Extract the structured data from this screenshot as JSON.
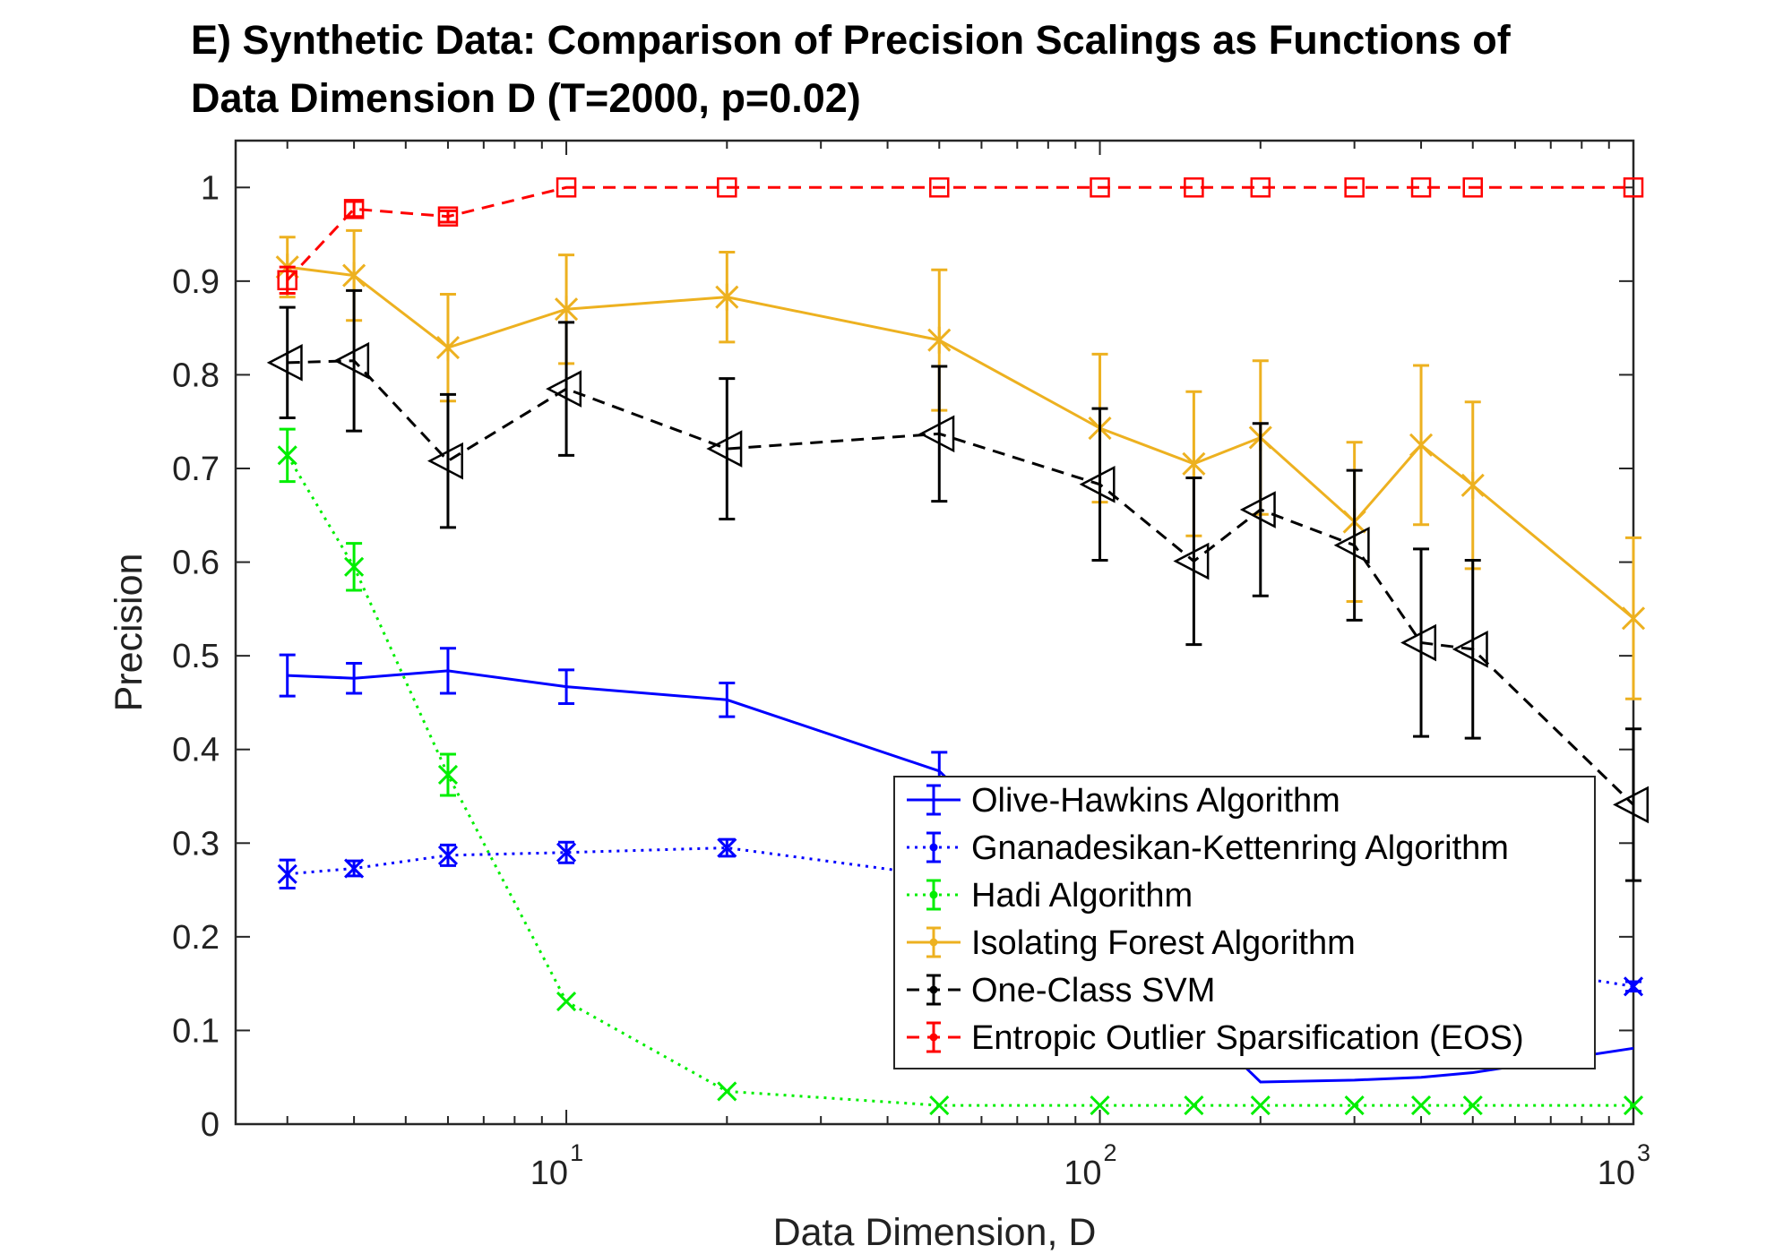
{
  "chart_data": {
    "type": "line",
    "title_lines": [
      "E) Synthetic Data: Comparison of Precision Scalings as Functions of",
      "Data Dimension D (T=2000, p=0.02)"
    ],
    "xlabel": "Data Dimension, D",
    "ylabel": "Precision",
    "xscale": "log",
    "xlim": [
      2.4,
      1000
    ],
    "ylim": [
      0,
      1.05
    ],
    "xticks": [
      10,
      100,
      1000
    ],
    "xtick_labels": [
      {
        "base": "10",
        "exp": "1"
      },
      {
        "base": "10",
        "exp": "2"
      },
      {
        "base": "10",
        "exp": "3"
      }
    ],
    "yticks": [
      0,
      0.1,
      0.2,
      0.3,
      0.4,
      0.5,
      0.6,
      0.7,
      0.8,
      0.9,
      1
    ],
    "ytick_labels": [
      "0",
      "0.1",
      "0.2",
      "0.3",
      "0.4",
      "0.5",
      "0.6",
      "0.7",
      "0.8",
      "0.9",
      "1"
    ],
    "grid": false,
    "legend_position": "lower-right",
    "x": [
      3,
      4,
      6,
      10,
      20,
      50,
      100,
      150,
      200,
      300,
      400,
      500,
      1000
    ],
    "series": [
      {
        "name": "Olive-Hawkins Algorithm",
        "color": "#0000ff",
        "line": "solid",
        "marker": "none",
        "x": [
          3,
          4,
          6,
          10,
          20,
          50,
          200,
          300,
          400,
          500,
          1000
        ],
        "values": [
          0.479,
          0.476,
          0.484,
          0.467,
          0.453,
          0.377,
          0.045,
          0.047,
          0.05,
          0.055,
          0.081
        ],
        "err": [
          0.022,
          0.016,
          0.024,
          0.018,
          0.018,
          0.02,
          0,
          0,
          0,
          0,
          0
        ]
      },
      {
        "name": "Gnanadesikan-Kettenring Algorithm",
        "color": "#0000ff",
        "line": "dotted",
        "marker": "x",
        "x": [
          3,
          4,
          6,
          10,
          20,
          50,
          1000
        ],
        "values": [
          0.267,
          0.273,
          0.287,
          0.29,
          0.295,
          0.265,
          0.147
        ],
        "err": [
          0.015,
          0.008,
          0.011,
          0.011,
          0.009,
          0,
          0.005
        ]
      },
      {
        "name": "Hadi Algorithm",
        "color": "#00ee00",
        "line": "dotted",
        "marker": "x",
        "x": [
          3,
          4,
          6,
          10,
          20,
          50,
          100,
          150,
          200,
          300,
          400,
          500,
          1000
        ],
        "values": [
          0.714,
          0.595,
          0.373,
          0.131,
          0.035,
          0.02,
          0.02,
          0.02,
          0.02,
          0.02,
          0.02,
          0.02,
          0.02
        ],
        "err": [
          0.028,
          0.025,
          0.022,
          0,
          0,
          0,
          0,
          0,
          0,
          0,
          0,
          0,
          0
        ]
      },
      {
        "name": "Isolating Forest Algorithm",
        "color": "#edb120",
        "line": "solid",
        "marker": "star",
        "x": [
          3,
          4,
          6,
          10,
          20,
          50,
          100,
          150,
          200,
          300,
          400,
          500,
          1000
        ],
        "values": [
          0.915,
          0.906,
          0.829,
          0.87,
          0.883,
          0.837,
          0.743,
          0.705,
          0.733,
          0.643,
          0.725,
          0.682,
          0.54
        ],
        "err": [
          0.032,
          0.048,
          0.057,
          0.058,
          0.048,
          0.075,
          0.079,
          0.077,
          0.082,
          0.085,
          0.085,
          0.089,
          0.086
        ]
      },
      {
        "name": "One-Class SVM",
        "color": "#000000",
        "line": "dashed",
        "marker": "triangle-left",
        "x": [
          3,
          4,
          6,
          10,
          20,
          50,
          100,
          150,
          200,
          300,
          400,
          500,
          1000
        ],
        "values": [
          0.813,
          0.815,
          0.708,
          0.785,
          0.721,
          0.737,
          0.683,
          0.601,
          0.656,
          0.618,
          0.514,
          0.507,
          0.341
        ],
        "err": [
          0.059,
          0.075,
          0.071,
          0.071,
          0.075,
          0.072,
          0.081,
          0.089,
          0.092,
          0.08,
          0.1,
          0.095,
          0.081
        ]
      },
      {
        "name": "Entropic Outlier Sparsification (EOS)",
        "color": "#ff0000",
        "line": "dashed",
        "marker": "square",
        "x": [
          3,
          4,
          6,
          10,
          20,
          50,
          100,
          150,
          200,
          300,
          400,
          500,
          1000
        ],
        "values": [
          0.901,
          0.977,
          0.969,
          1.0,
          1.0,
          1.0,
          1.0,
          1.0,
          1.0,
          1.0,
          1.0,
          1.0,
          1.0
        ],
        "err": [
          0.014,
          0.008,
          0.006,
          0,
          0,
          0,
          0,
          0,
          0,
          0,
          0,
          0,
          0
        ]
      }
    ]
  }
}
